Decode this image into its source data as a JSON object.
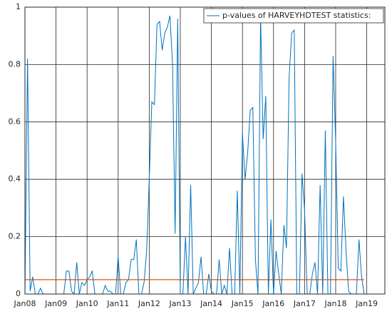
{
  "chart_data": {
    "type": "line",
    "x": [
      "2008-01",
      "2008-02",
      "2008-03",
      "2008-04",
      "2008-05",
      "2008-06",
      "2008-07",
      "2008-08",
      "2008-09",
      "2008-10",
      "2008-11",
      "2008-12",
      "2009-01",
      "2009-02",
      "2009-03",
      "2009-04",
      "2009-05",
      "2009-06",
      "2009-07",
      "2009-08",
      "2009-09",
      "2009-10",
      "2009-11",
      "2009-12",
      "2010-01",
      "2010-02",
      "2010-03",
      "2010-04",
      "2010-05",
      "2010-06",
      "2010-07",
      "2010-08",
      "2010-09",
      "2010-10",
      "2010-11",
      "2010-12",
      "2011-01",
      "2011-02",
      "2011-03",
      "2011-04",
      "2011-05",
      "2011-06",
      "2011-07",
      "2011-08",
      "2011-09",
      "2011-10",
      "2011-11",
      "2011-12",
      "2012-01",
      "2012-02",
      "2012-03",
      "2012-04",
      "2012-05",
      "2012-06",
      "2012-07",
      "2012-08",
      "2012-09",
      "2012-10",
      "2012-11",
      "2012-12",
      "2013-01",
      "2013-02",
      "2013-03",
      "2013-04",
      "2013-05",
      "2013-06",
      "2013-07",
      "2013-08",
      "2013-09",
      "2013-10",
      "2013-11",
      "2013-12",
      "2014-01",
      "2014-02",
      "2014-03",
      "2014-04",
      "2014-05",
      "2014-06",
      "2014-07",
      "2014-08",
      "2014-09",
      "2014-10",
      "2014-11",
      "2014-12",
      "2015-01",
      "2015-02",
      "2015-03",
      "2015-04",
      "2015-05",
      "2015-06",
      "2015-07",
      "2015-08",
      "2015-09",
      "2015-10",
      "2015-11",
      "2015-12",
      "2016-01",
      "2016-02",
      "2016-03",
      "2016-04",
      "2016-05",
      "2016-06",
      "2016-07",
      "2016-08",
      "2016-09",
      "2016-10",
      "2016-11",
      "2016-12",
      "2017-01",
      "2017-02",
      "2017-03",
      "2017-04",
      "2017-05",
      "2017-06",
      "2017-07",
      "2017-08",
      "2017-09",
      "2017-10",
      "2017-11",
      "2017-12",
      "2018-01",
      "2018-02",
      "2018-03",
      "2018-04",
      "2018-05",
      "2018-06",
      "2018-07",
      "2018-08",
      "2018-09",
      "2018-10",
      "2018-11",
      "2018-12"
    ],
    "series": [
      {
        "name": "p-values of HARVEYHDTEST statistics:",
        "color": "#0072bd",
        "values": [
          0.0,
          0.82,
          0.01,
          0.06,
          0.0,
          0.0,
          0.02,
          0.0,
          0.0,
          0.0,
          0.0,
          0.0,
          0.0,
          0.0,
          0.0,
          0.0,
          0.08,
          0.08,
          0.01,
          0.0,
          0.11,
          0.0,
          0.04,
          0.03,
          0.05,
          0.06,
          0.08,
          0.0,
          0.0,
          0.0,
          0.0,
          0.03,
          0.01,
          0.01,
          0.0,
          0.0,
          0.13,
          0.0,
          0.0,
          0.04,
          0.05,
          0.12,
          0.12,
          0.19,
          0.0,
          0.0,
          0.04,
          0.15,
          0.4,
          0.67,
          0.66,
          0.94,
          0.95,
          0.85,
          0.91,
          0.93,
          0.97,
          0.8,
          0.21,
          0.96,
          0.0,
          0.0,
          0.2,
          0.0,
          0.38,
          0.0,
          0.02,
          0.04,
          0.13,
          0.0,
          0.0,
          0.07,
          0.01,
          0.0,
          0.0,
          0.12,
          0.0,
          0.03,
          0.0,
          0.16,
          0.0,
          0.0,
          0.36,
          0.0,
          0.56,
          0.4,
          0.49,
          0.64,
          0.65,
          0.12,
          0.0,
          0.97,
          0.54,
          0.69,
          0.0,
          0.26,
          0.0,
          0.15,
          0.07,
          0.0,
          0.24,
          0.16,
          0.75,
          0.91,
          0.92,
          0.0,
          0.0,
          0.42,
          0.29,
          0.0,
          0.0,
          0.07,
          0.11,
          0.0,
          0.38,
          0.0,
          0.57,
          0.0,
          0.0,
          0.83,
          0.53,
          0.09,
          0.08,
          0.34,
          0.15,
          0.01,
          0.0,
          0.0,
          0.0,
          0.19,
          0.06,
          0.0
        ]
      }
    ],
    "reference_line": {
      "value": 0.05,
      "color": "#d95319"
    },
    "xlim": [
      "2008-01",
      "2019-08"
    ],
    "xticks": [
      {
        "value": "2008-01",
        "label": "Jan08"
      },
      {
        "value": "2009-01",
        "label": "Jan09"
      },
      {
        "value": "2010-01",
        "label": "Jan10"
      },
      {
        "value": "2011-01",
        "label": "Jan11"
      },
      {
        "value": "2012-01",
        "label": "Jan12"
      },
      {
        "value": "2013-01",
        "label": "Jan13"
      },
      {
        "value": "2014-01",
        "label": "Jan14"
      },
      {
        "value": "2015-01",
        "label": "Jan15"
      },
      {
        "value": "2016-01",
        "label": "Jan16"
      },
      {
        "value": "2017-01",
        "label": "Jan17"
      },
      {
        "value": "2018-01",
        "label": "Jan18"
      },
      {
        "value": "2019-01",
        "label": "Jan19"
      }
    ],
    "ylim": [
      0,
      1
    ],
    "yticks": [
      0,
      0.2,
      0.4,
      0.6,
      0.8,
      1
    ],
    "grid": true,
    "legend": "top-right"
  }
}
